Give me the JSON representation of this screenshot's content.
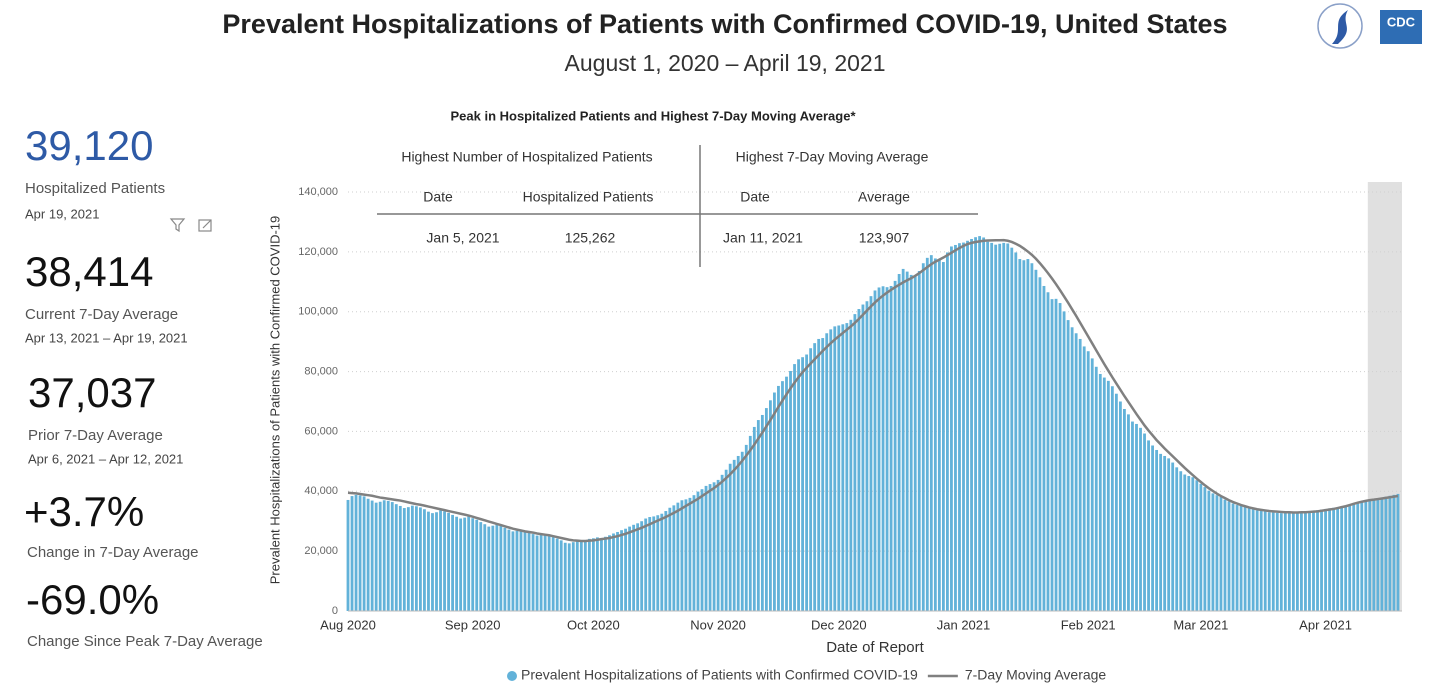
{
  "header": {
    "title": "Prevalent Hospitalizations of Patients with Confirmed COVID-19, United States",
    "subtitle": "August 1, 2020 – April 19, 2021",
    "logo_text": "CDC"
  },
  "kpis": [
    {
      "value": "39,120",
      "label": "Hospitalized Patients",
      "date": "Apr 19, 2021"
    },
    {
      "value": "38,414",
      "label": "Current 7-Day Average",
      "date": "Apr 13, 2021 – Apr 19, 2021"
    },
    {
      "value": "37,037",
      "label": "Prior 7-Day Average",
      "date": "Apr 6, 2021 – Apr 12, 2021"
    },
    {
      "value": "+3.7%",
      "label": "Change in 7-Day Average"
    },
    {
      "value": "-69.0%",
      "label": "Change Since Peak 7-Day Average"
    }
  ],
  "peak_table": {
    "title": "Peak in Hospitalized Patients and Highest 7-Day Moving Average*",
    "groups": [
      "Highest Number of Hospitalized Patients",
      "Highest 7-Day Moving Average"
    ],
    "columns": [
      "Date",
      "Hospitalized Patients",
      "Date",
      "Average"
    ],
    "rows": [
      [
        "Jan 5, 2021",
        "125,262",
        "Jan 11, 2021",
        "123,907"
      ]
    ]
  },
  "chart_data": {
    "type": "bar",
    "x_label": "Date of Report",
    "y_label": "Prevalent Hospitalizations of Patients with Confirmed COVID-19",
    "xlim": [
      0,
      262
    ],
    "ylim": [
      0,
      140000
    ],
    "xticks": [
      {
        "value": 0,
        "label": "Aug 2020"
      },
      {
        "value": 31,
        "label": "Sep 2020"
      },
      {
        "value": 61,
        "label": "Oct 2020"
      },
      {
        "value": 92,
        "label": "Nov 2020"
      },
      {
        "value": 122,
        "label": "Dec 2020"
      },
      {
        "value": 153,
        "label": "Jan 2021"
      },
      {
        "value": 184,
        "label": "Feb 2021"
      },
      {
        "value": 212,
        "label": "Mar 2021"
      },
      {
        "value": 243,
        "label": "Apr 2021"
      }
    ],
    "yticks": [
      0,
      {
        "value": 20000,
        "label": "20,000"
      },
      {
        "value": 40000,
        "label": "40,000"
      },
      {
        "value": 60000,
        "label": "60,000"
      },
      {
        "value": 80000,
        "label": "80,000"
      },
      {
        "value": 100000,
        "label": "100,000"
      },
      {
        "value": 120000,
        "label": "120,000"
      },
      {
        "value": 140000,
        "label": "140,000"
      }
    ],
    "grid": true,
    "shaded_xlim": [
      253.5,
      262
    ],
    "shade_color": "#e0e0e0",
    "series": [
      {
        "name": "Prevalent Hospitalizations of Patients with Confirmed COVID-19",
        "type": "bar",
        "color": "#62b2d9",
        "values": [
          37100,
          38400,
          38800,
          38600,
          38300,
          37500,
          36900,
          36200,
          36500,
          37000,
          36800,
          36400,
          35700,
          35100,
          34400,
          34700,
          35200,
          35000,
          34600,
          34000,
          33200,
          32700,
          33000,
          33600,
          33300,
          32800,
          32100,
          31500,
          30900,
          31200,
          31600,
          31000,
          30500,
          29700,
          29000,
          28200,
          28500,
          28900,
          28400,
          27800,
          27200,
          26600,
          26800,
          27100,
          26700,
          26200,
          25700,
          25200,
          25400,
          25600,
          25200,
          24700,
          24200,
          23600,
          22800,
          22600,
          23000,
          23300,
          23100,
          23600,
          24100,
          24300,
          24600,
          24400,
          24800,
          25300,
          25900,
          26400,
          27000,
          27500,
          28200,
          28800,
          29300,
          30000,
          30900,
          31400,
          31600,
          32000,
          32500,
          33400,
          34500,
          35300,
          36200,
          37000,
          37300,
          37800,
          38700,
          39900,
          40700,
          41800,
          42400,
          43000,
          43800,
          45500,
          47200,
          49200,
          50500,
          51800,
          53200,
          55500,
          58500,
          61500,
          63800,
          65500,
          67800,
          70400,
          73000,
          75200,
          76800,
          78300,
          80200,
          82500,
          84100,
          84800,
          85700,
          87800,
          89500,
          90900,
          91200,
          92800,
          94100,
          95100,
          95400,
          95800,
          96200,
          97300,
          99200,
          100900,
          102400,
          103500,
          105200,
          107100,
          108100,
          108500,
          108200,
          108600,
          110300,
          112600,
          114300,
          113400,
          112300,
          111800,
          113600,
          116200,
          118000,
          118900,
          117800,
          117400,
          116600,
          119800,
          121800,
          122300,
          122900,
          123100,
          123700,
          124300,
          124900,
          125262,
          124800,
          123400,
          123000,
          122400,
          122700,
          123000,
          122800,
          121400,
          119800,
          117600,
          117200,
          117600,
          116200,
          114000,
          111500,
          108600,
          106500,
          104200,
          104300,
          102900,
          100100,
          97200,
          94800,
          92800,
          90900,
          88400,
          86800,
          84400,
          81600,
          79200,
          78000,
          76900,
          75100,
          72600,
          70000,
          67500,
          65700,
          63300,
          62500,
          61200,
          59300,
          57000,
          55300,
          53800,
          52500,
          51800,
          51000,
          49600,
          48000,
          46700,
          45600,
          45100,
          44700,
          43700,
          42500,
          41400,
          40200,
          39300,
          38700,
          38100,
          37200,
          36600,
          35900,
          35400,
          35300,
          34800,
          34400,
          34000,
          33600,
          33500,
          33300,
          33000,
          32900,
          32800,
          32700,
          32800,
          32700,
          32600,
          32700,
          32900,
          33100,
          33300,
          33500,
          33700,
          33900,
          34100,
          34300,
          34500,
          34500,
          34800,
          35200,
          35500,
          35800,
          36200,
          36600,
          36900,
          37100,
          37400,
          37700,
          37900,
          38200,
          38500,
          38800,
          39120
        ]
      },
      {
        "name": "7-Day Moving Average",
        "type": "line",
        "color": "#808080",
        "values": [
          39500,
          39400,
          39300,
          39100,
          38900,
          38700,
          38500,
          38200,
          37900,
          37700,
          37500,
          37300,
          37100,
          36900,
          36600,
          36300,
          36000,
          35700,
          35500,
          35200,
          34900,
          34600,
          34300,
          34000,
          33700,
          33400,
          33100,
          32800,
          32500,
          32200,
          31900,
          31500,
          31100,
          30700,
          30300,
          29900,
          29500,
          29100,
          28700,
          28300,
          27900,
          27500,
          27200,
          26900,
          26600,
          26400,
          26200,
          25900,
          25700,
          25500,
          25300,
          25000,
          24700,
          24400,
          24100,
          23800,
          23600,
          23500,
          23400,
          23400,
          23500,
          23600,
          23800,
          24000,
          24200,
          24400,
          24700,
          25000,
          25400,
          25800,
          26300,
          26800,
          27300,
          27800,
          28400,
          29000,
          29600,
          30200,
          30800,
          31400,
          32100,
          32800,
          33500,
          34300,
          35100,
          35900,
          36700,
          37500,
          38400,
          39300,
          40200,
          41100,
          42100,
          43200,
          44400,
          45700,
          47100,
          48600,
          50200,
          51900,
          53700,
          55600,
          57600,
          59600,
          61700,
          63800,
          66000,
          68200,
          70300,
          72400,
          74400,
          76300,
          78100,
          79800,
          81300,
          82700,
          84100,
          85500,
          86900,
          88200,
          89500,
          90700,
          91800,
          92900,
          94000,
          95100,
          96300,
          97600,
          99000,
          100400,
          101800,
          103100,
          104300,
          105400,
          106400,
          107300,
          108200,
          109000,
          109800,
          110500,
          111200,
          112000,
          112900,
          113900,
          114900,
          115900,
          116700,
          117400,
          118100,
          118900,
          119700,
          120500,
          121300,
          122000,
          122600,
          123000,
          123300,
          123500,
          123700,
          123800,
          123850,
          123880,
          123895,
          123907,
          123700,
          123300,
          122700,
          122000,
          121100,
          120100,
          119000,
          117700,
          116200,
          114600,
          112900,
          111100,
          109200,
          107200,
          105100,
          103000,
          100800,
          98600,
          96300,
          94000,
          91700,
          89400,
          87100,
          84800,
          82500,
          80300,
          78100,
          76000,
          73900,
          71800,
          69800,
          67800,
          65800,
          63900,
          62000,
          60300,
          58700,
          57100,
          55700,
          54300,
          53000,
          51700,
          50400,
          49100,
          47800,
          46600,
          45400,
          44200,
          43100,
          42000,
          41000,
          40100,
          39200,
          38400,
          37700,
          37000,
          36400,
          35900,
          35400,
          35000,
          34600,
          34300,
          34000,
          33800,
          33600,
          33400,
          33300,
          33200,
          33100,
          33000,
          33000,
          32900,
          32900,
          33000,
          33000,
          33100,
          33200,
          33300,
          33500,
          33700,
          33900,
          34100,
          34400,
          34700,
          35000,
          35400,
          35800,
          36200,
          36500,
          36800,
          37037,
          37200,
          37400,
          37600,
          37800,
          38000,
          38200,
          38414
        ]
      }
    ]
  }
}
